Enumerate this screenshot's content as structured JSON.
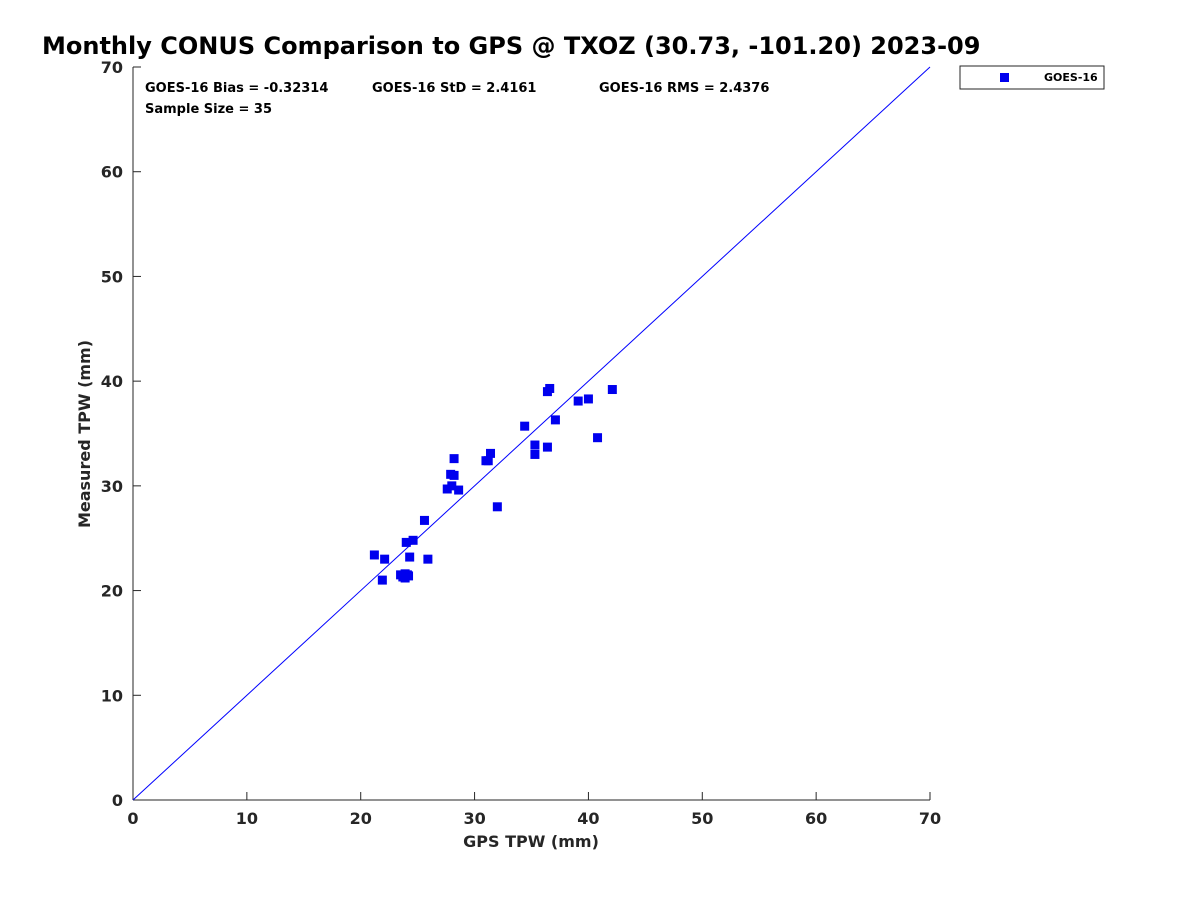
{
  "chart_data": {
    "type": "scatter",
    "title": "Monthly CONUS Comparison to GPS @ TXOZ (30.73, -101.20) 2023-09",
    "xlabel": "GPS TPW (mm)",
    "ylabel": "Measured TPW (mm)",
    "xlim": [
      0,
      70
    ],
    "ylim": [
      0,
      70
    ],
    "xticks": [
      0,
      10,
      20,
      30,
      40,
      50,
      60,
      70
    ],
    "yticks": [
      0,
      10,
      20,
      30,
      40,
      50,
      60,
      70
    ],
    "grid": false,
    "legend_position": "top-right outside",
    "reference_line": {
      "x": [
        0,
        70
      ],
      "y": [
        0,
        70
      ],
      "color": "#0000ff"
    },
    "annotations": {
      "bias": "GOES-16 Bias = -0.32314",
      "std": "GOES-16 StD = 2.4161",
      "rms": "GOES-16 RMS = 2.4376",
      "sample": "Sample Size = 35"
    },
    "series": [
      {
        "name": "GOES-16",
        "color": "#0000ee",
        "marker": "square",
        "points": [
          [
            21.2,
            23.4
          ],
          [
            21.9,
            21.0
          ],
          [
            22.1,
            23.0
          ],
          [
            23.5,
            21.5
          ],
          [
            23.7,
            21.3
          ],
          [
            23.9,
            21.6
          ],
          [
            23.9,
            21.2
          ],
          [
            24.2,
            21.4
          ],
          [
            24.3,
            23.2
          ],
          [
            24.0,
            24.6
          ],
          [
            24.6,
            24.8
          ],
          [
            25.6,
            26.7
          ],
          [
            25.9,
            23.0
          ],
          [
            27.6,
            29.7
          ],
          [
            27.9,
            31.1
          ],
          [
            28.0,
            30.0
          ],
          [
            28.2,
            31.0
          ],
          [
            28.2,
            32.6
          ],
          [
            28.6,
            29.6
          ],
          [
            31.0,
            32.4
          ],
          [
            31.2,
            32.4
          ],
          [
            31.4,
            33.1
          ],
          [
            32.0,
            28.0
          ],
          [
            34.4,
            35.7
          ],
          [
            35.3,
            33.9
          ],
          [
            35.3,
            33.0
          ],
          [
            36.4,
            33.7
          ],
          [
            36.4,
            39.0
          ],
          [
            36.6,
            39.3
          ],
          [
            37.1,
            36.3
          ],
          [
            39.1,
            38.1
          ],
          [
            40.0,
            38.3
          ],
          [
            40.8,
            34.6
          ],
          [
            42.1,
            39.2
          ],
          [
            24.1,
            21.5
          ]
        ]
      }
    ]
  }
}
